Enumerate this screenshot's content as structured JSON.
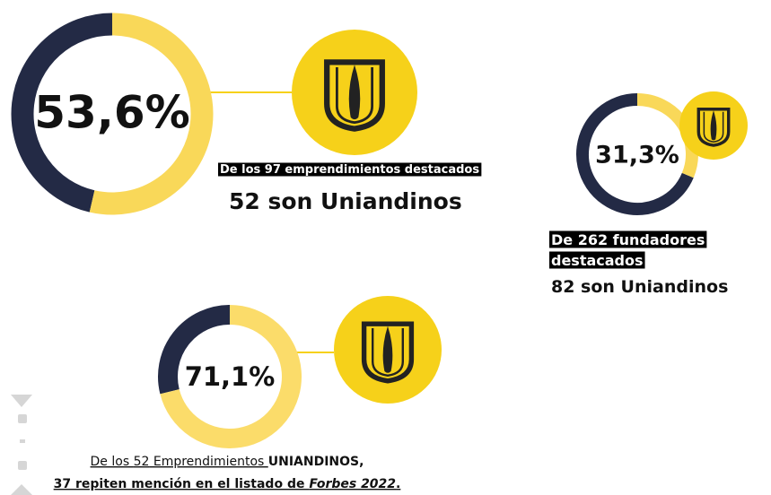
{
  "chart_data": [
    {
      "type": "donut",
      "values": [
        53.6
      ],
      "value_labels": [
        "53,6%"
      ],
      "colors": [
        "#f9d859",
        "#232a45"
      ],
      "annotations": [
        [
          "De los 97 emprendimientos destacados"
        ],
        [
          "52 son Uniandinos"
        ]
      ]
    },
    {
      "type": "donut",
      "values": [
        31.3
      ],
      "value_labels": [
        "31,3%"
      ],
      "colors": [
        "#f9d859",
        "#232a45"
      ],
      "annotations": [
        [
          "De 262 fundadores"
        ],
        [
          "destacados"
        ],
        [
          "82 son Uniandinos"
        ]
      ]
    },
    {
      "type": "donut",
      "values": [
        71.1
      ],
      "value_labels": [
        "71,1%"
      ],
      "colors": [
        "#fbdc6a",
        "#232a45"
      ],
      "annotations": [
        [
          "De los ",
          "52",
          " Emprendimientos ",
          "UNIANDINOS,"
        ],
        [
          "37 repiten mención en el listado de ",
          "Forbes 2022",
          "."
        ]
      ]
    }
  ]
}
